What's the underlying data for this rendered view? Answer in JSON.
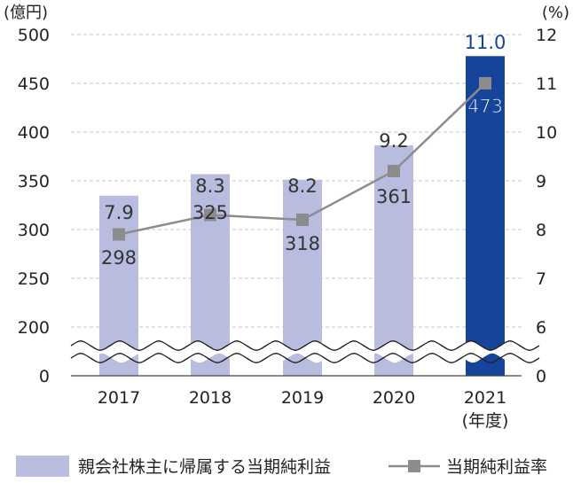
{
  "chart_data": {
    "type": "bar",
    "left_unit": "(億円)",
    "right_unit": "(%)",
    "categories": [
      "2017",
      "2018",
      "2019",
      "2020",
      "2021"
    ],
    "x_sublabel": "(年度)",
    "left_ticks": [
      "500",
      "450",
      "400",
      "350",
      "300",
      "250",
      "200",
      "0"
    ],
    "right_ticks": [
      "12",
      "11",
      "10",
      "9",
      "8",
      "7",
      "6",
      "0"
    ],
    "ylim_left": [
      0,
      500
    ],
    "axis_break": true,
    "grid": "dashed",
    "series": [
      {
        "name": "親会社株主に帰属する当期純利益",
        "type": "bar",
        "axis": "left",
        "values": [
          298,
          325,
          318,
          361,
          473
        ],
        "labels": [
          "298",
          "325",
          "318",
          "361",
          "473"
        ],
        "color": "#b8bddf",
        "highlight_color": "#16449a",
        "highlight_index": 4
      },
      {
        "name": "当期純利益率",
        "type": "line",
        "axis": "right",
        "values": [
          7.9,
          8.3,
          8.2,
          9.2,
          11.0
        ],
        "labels": [
          "7.9",
          "8.3",
          "8.2",
          "9.2",
          "11.0"
        ],
        "color": "#8c8c8c"
      }
    ],
    "legend_position": "bottom"
  }
}
